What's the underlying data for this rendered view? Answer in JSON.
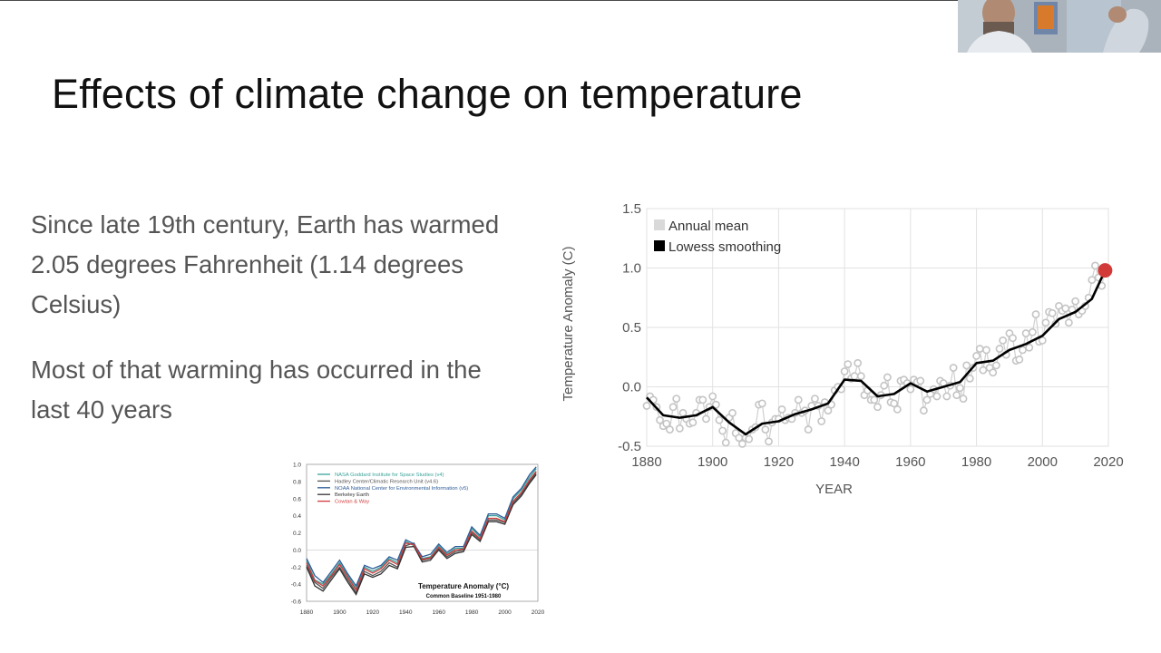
{
  "slide": {
    "title": "Effects of climate change on temperature",
    "paragraphs": [
      "Since late 19th century, Earth has warmed 2.05 degrees Fahrenheit (1.14 degrees Celsius)",
      "Most of that warming has occurred in the last 40 years"
    ]
  },
  "webcam": {
    "icon": "person-video-icon"
  },
  "chart_data": [
    {
      "type": "line",
      "xlabel": "YEAR",
      "ylabel": "Temperature Anomaly (C)",
      "xlim": [
        1880,
        2020
      ],
      "ylim": [
        -0.5,
        1.5
      ],
      "x_ticks": [
        "1880",
        "1900",
        "1920",
        "1940",
        "1960",
        "1980",
        "2000",
        "2020"
      ],
      "y_ticks": [
        "-0.5",
        "0.0",
        "0.5",
        "1.0",
        "1.5"
      ],
      "grid": true,
      "legend_position": "top-left",
      "series": [
        {
          "name": "Annual mean",
          "color": "#c8c8c8",
          "x": [
            1880,
            1881,
            1882,
            1883,
            1884,
            1885,
            1886,
            1887,
            1888,
            1889,
            1890,
            1891,
            1892,
            1893,
            1894,
            1895,
            1896,
            1897,
            1898,
            1899,
            1900,
            1901,
            1902,
            1903,
            1904,
            1905,
            1906,
            1907,
            1908,
            1909,
            1910,
            1911,
            1912,
            1913,
            1914,
            1915,
            1916,
            1917,
            1918,
            1919,
            1920,
            1921,
            1922,
            1923,
            1924,
            1925,
            1926,
            1927,
            1928,
            1929,
            1930,
            1931,
            1932,
            1933,
            1934,
            1935,
            1936,
            1937,
            1938,
            1939,
            1940,
            1941,
            1942,
            1943,
            1944,
            1945,
            1946,
            1947,
            1948,
            1949,
            1950,
            1951,
            1952,
            1953,
            1954,
            1955,
            1956,
            1957,
            1958,
            1959,
            1960,
            1961,
            1962,
            1963,
            1964,
            1965,
            1966,
            1967,
            1968,
            1969,
            1970,
            1971,
            1972,
            1973,
            1974,
            1975,
            1976,
            1977,
            1978,
            1979,
            1980,
            1981,
            1982,
            1983,
            1984,
            1985,
            1986,
            1987,
            1988,
            1989,
            1990,
            1991,
            1992,
            1993,
            1994,
            1995,
            1996,
            1997,
            1998,
            1999,
            2000,
            2001,
            2002,
            2003,
            2004,
            2005,
            2006,
            2007,
            2008,
            2009,
            2010,
            2011,
            2012,
            2013,
            2014,
            2015,
            2016,
            2017,
            2018,
            2019
          ],
          "values": [
            -0.16,
            -0.08,
            -0.11,
            -0.17,
            -0.28,
            -0.33,
            -0.31,
            -0.36,
            -0.17,
            -0.1,
            -0.35,
            -0.22,
            -0.27,
            -0.31,
            -0.3,
            -0.22,
            -0.11,
            -0.11,
            -0.27,
            -0.17,
            -0.08,
            -0.15,
            -0.28,
            -0.37,
            -0.47,
            -0.26,
            -0.22,
            -0.39,
            -0.43,
            -0.48,
            -0.43,
            -0.44,
            -0.36,
            -0.34,
            -0.15,
            -0.14,
            -0.36,
            -0.46,
            -0.3,
            -0.27,
            -0.27,
            -0.19,
            -0.28,
            -0.26,
            -0.27,
            -0.22,
            -0.11,
            -0.22,
            -0.2,
            -0.36,
            -0.16,
            -0.1,
            -0.16,
            -0.29,
            -0.13,
            -0.2,
            -0.15,
            -0.03,
            0.0,
            -0.02,
            0.13,
            0.19,
            0.07,
            0.09,
            0.2,
            0.09,
            -0.07,
            -0.03,
            -0.11,
            -0.11,
            -0.17,
            -0.07,
            0.01,
            0.08,
            -0.13,
            -0.14,
            -0.19,
            0.05,
            0.06,
            0.03,
            -0.02,
            0.06,
            0.04,
            0.05,
            -0.2,
            -0.11,
            -0.06,
            -0.02,
            -0.08,
            0.05,
            0.03,
            -0.08,
            0.01,
            0.16,
            -0.07,
            -0.01,
            -0.1,
            0.18,
            0.07,
            0.16,
            0.26,
            0.32,
            0.14,
            0.31,
            0.16,
            0.12,
            0.18,
            0.32,
            0.39,
            0.27,
            0.45,
            0.41,
            0.22,
            0.23,
            0.31,
            0.45,
            0.33,
            0.46,
            0.61,
            0.38,
            0.39,
            0.54,
            0.63,
            0.62,
            0.53,
            0.68,
            0.64,
            0.66,
            0.54,
            0.65,
            0.72,
            0.61,
            0.64,
            0.68,
            0.75,
            0.9,
            1.02,
            0.92,
            0.85,
            0.98
          ]
        },
        {
          "name": "Lowess smoothing",
          "color": "#000000",
          "x": [
            1880,
            1885,
            1890,
            1895,
            1900,
            1905,
            1910,
            1915,
            1920,
            1925,
            1930,
            1935,
            1940,
            1945,
            1950,
            1955,
            1960,
            1965,
            1970,
            1975,
            1980,
            1985,
            1990,
            1995,
            2000,
            2005,
            2010,
            2015,
            2019
          ],
          "values": [
            -0.09,
            -0.24,
            -0.26,
            -0.24,
            -0.17,
            -0.3,
            -0.4,
            -0.31,
            -0.29,
            -0.23,
            -0.19,
            -0.14,
            0.06,
            0.05,
            -0.08,
            -0.06,
            0.03,
            -0.04,
            0.0,
            0.04,
            0.2,
            0.22,
            0.31,
            0.36,
            0.43,
            0.57,
            0.63,
            0.74,
            0.98
          ]
        }
      ],
      "highlight": {
        "x": 2019,
        "y": 0.98,
        "color": "#d23a3a"
      }
    },
    {
      "type": "line",
      "title": "Temperature Anomaly (°C)",
      "subtitle": "Common Baseline 1951-1980",
      "xlim": [
        1880,
        2020
      ],
      "ylim": [
        -0.6,
        1.0
      ],
      "x_ticks": [
        "1880",
        "1900",
        "1920",
        "1940",
        "1960",
        "1980",
        "2000",
        "2020"
      ],
      "y_ticks": [
        "1.0",
        "0.8",
        "0.6",
        "0.4",
        "0.2",
        "0.0",
        "-0.2",
        "-0.4",
        "-0.6"
      ],
      "legend_position": "top-left",
      "x": [
        1880,
        1885,
        1890,
        1895,
        1900,
        1905,
        1910,
        1915,
        1920,
        1925,
        1930,
        1935,
        1940,
        1945,
        1950,
        1955,
        1960,
        1965,
        1970,
        1975,
        1980,
        1985,
        1990,
        1995,
        2000,
        2005,
        2010,
        2015,
        2019
      ],
      "series": [
        {
          "name": "NASA Goddard Institute for Space Studies (v4)",
          "color": "#3aa39a",
          "values": [
            -0.12,
            -0.35,
            -0.4,
            -0.28,
            -0.15,
            -0.3,
            -0.45,
            -0.2,
            -0.25,
            -0.2,
            -0.1,
            -0.15,
            0.1,
            0.05,
            -0.1,
            -0.08,
            0.05,
            -0.05,
            0.02,
            0.02,
            0.25,
            0.15,
            0.4,
            0.4,
            0.35,
            0.6,
            0.7,
            0.85,
            0.95
          ]
        },
        {
          "name": "Hadley Center/Climatic Research Unit (v4.6)",
          "color": "#555555",
          "values": [
            -0.18,
            -0.38,
            -0.45,
            -0.32,
            -0.2,
            -0.35,
            -0.5,
            -0.25,
            -0.3,
            -0.25,
            -0.15,
            -0.2,
            0.05,
            0.08,
            -0.12,
            -0.1,
            0.02,
            -0.08,
            -0.02,
            0.0,
            0.2,
            0.12,
            0.35,
            0.35,
            0.32,
            0.55,
            0.65,
            0.8,
            0.9
          ]
        },
        {
          "name": "NOAA National Center for Environmental Information (v5)",
          "color": "#2f5d9a",
          "values": [
            -0.1,
            -0.3,
            -0.38,
            -0.25,
            -0.12,
            -0.28,
            -0.42,
            -0.18,
            -0.22,
            -0.18,
            -0.08,
            -0.12,
            0.12,
            0.07,
            -0.08,
            -0.05,
            0.07,
            -0.03,
            0.04,
            0.04,
            0.27,
            0.17,
            0.42,
            0.42,
            0.37,
            0.62,
            0.72,
            0.88,
            0.97
          ]
        },
        {
          "name": "Berkeley Earth",
          "color": "#333333",
          "values": [
            -0.2,
            -0.42,
            -0.48,
            -0.35,
            -0.22,
            -0.38,
            -0.52,
            -0.28,
            -0.32,
            -0.28,
            -0.18,
            -0.22,
            0.03,
            0.04,
            -0.14,
            -0.12,
            0.0,
            -0.1,
            -0.04,
            -0.02,
            0.18,
            0.1,
            0.33,
            0.33,
            0.3,
            0.53,
            0.63,
            0.78,
            0.88
          ]
        },
        {
          "name": "Cowtan & Way",
          "color": "#d23a3a",
          "values": [
            -0.15,
            -0.36,
            -0.42,
            -0.3,
            -0.17,
            -0.32,
            -0.47,
            -0.22,
            -0.27,
            -0.22,
            -0.12,
            -0.17,
            0.08,
            0.06,
            -0.11,
            -0.09,
            0.03,
            -0.06,
            0.0,
            0.01,
            0.22,
            0.13,
            0.37,
            0.37,
            0.33,
            0.57,
            0.67,
            0.82,
            0.92
          ]
        }
      ]
    }
  ]
}
